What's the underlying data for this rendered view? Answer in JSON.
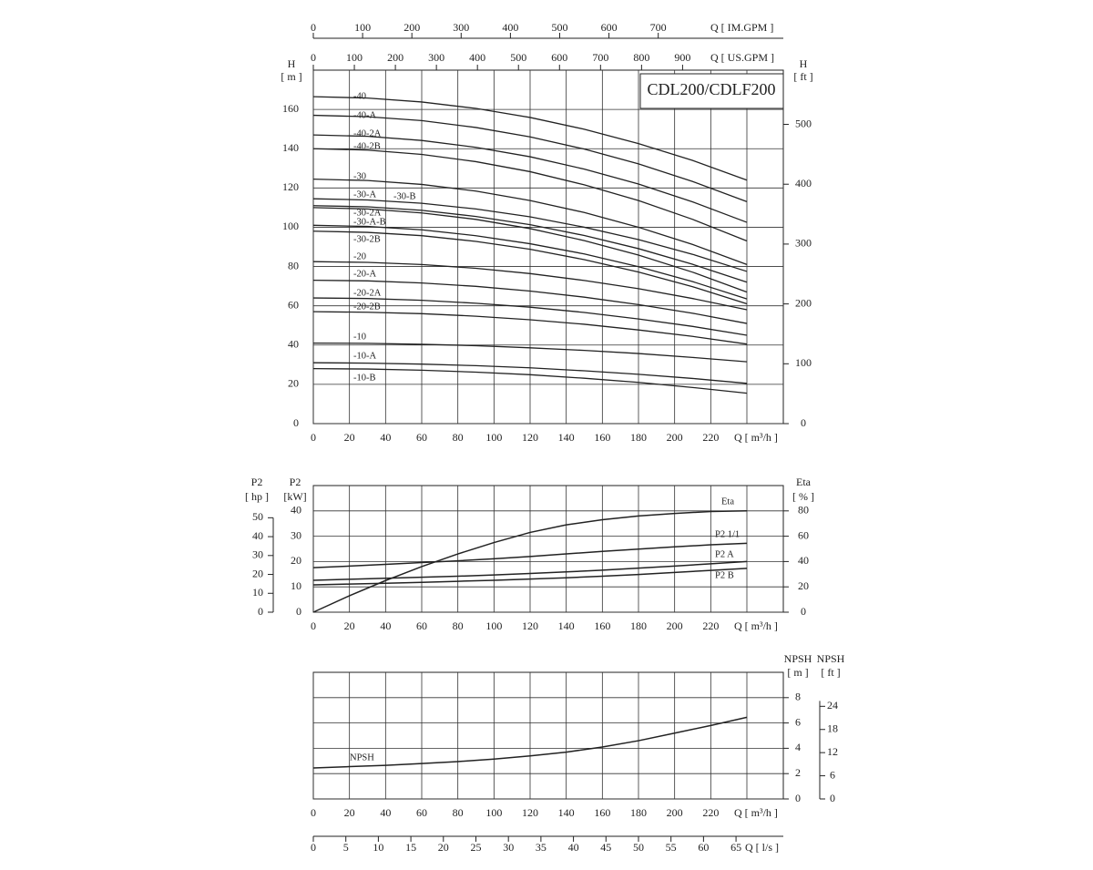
{
  "chart_data": [
    {
      "type": "line",
      "title": "CDL200/CDLF200",
      "grid": true,
      "x_label": "Q [ m³/h ]",
      "xlim": [
        0,
        240
      ],
      "xticks": [
        0,
        20,
        40,
        60,
        80,
        100,
        120,
        140,
        160,
        180,
        200,
        220
      ],
      "y_label": "H",
      "y_unit": "[ m ]",
      "ylim": [
        0,
        180
      ],
      "yticks": [
        0,
        20,
        40,
        60,
        80,
        100,
        120,
        140,
        160
      ],
      "y2_label": "H",
      "y2_unit": "[ ft ]",
      "y2lim": [
        0,
        590.6
      ],
      "y2ticks": [
        0,
        100,
        200,
        300,
        400,
        500
      ],
      "top_axes": [
        {
          "label": "Q [ US.GPM ]",
          "lim": [
            0,
            1056.7
          ],
          "ticks": [
            0,
            100,
            200,
            300,
            400,
            500,
            600,
            700,
            800,
            900
          ]
        },
        {
          "label": "Q [ IM.GPM ]",
          "lim": [
            0,
            879.9
          ],
          "ticks": [
            0,
            100,
            200,
            300,
            400,
            500,
            600,
            700
          ]
        }
      ],
      "x": [
        0,
        30,
        60,
        90,
        120,
        150,
        180,
        210,
        240
      ],
      "series": [
        {
          "name": "-40",
          "color": "#222222",
          "values": [
            166.5,
            165.8,
            163.8,
            160.5,
            155.9,
            149.9,
            142.6,
            134.0,
            124.0
          ]
        },
        {
          "name": "-40-A",
          "color": "#222222",
          "values": [
            157,
            156.3,
            154.3,
            150.8,
            146,
            139.8,
            132.3,
            123.3,
            113
          ]
        },
        {
          "name": "-40-2A",
          "color": "#222222",
          "values": [
            147,
            146.3,
            144.2,
            140.7,
            135.9,
            129.6,
            122,
            112.9,
            102.5
          ]
        },
        {
          "name": "-40-2B",
          "color": "#222222",
          "values": [
            140,
            139.3,
            137.1,
            133.4,
            128.3,
            121.6,
            113.6,
            104,
            93
          ]
        },
        {
          "name": "-30",
          "color": "#222222",
          "values": [
            124.5,
            123.8,
            121.8,
            118.4,
            113.6,
            107.5,
            100,
            91.2,
            81
          ]
        },
        {
          "name": "-30-A",
          "color": "#222222",
          "values": [
            114.5,
            113.9,
            112.2,
            109.3,
            105.3,
            100,
            93.7,
            86.2,
            77.5
          ]
        },
        {
          "name": "-30-B",
          "color": "#222222",
          "values": [
            111,
            110.4,
            108.6,
            105.5,
            101.3,
            95.8,
            89.1,
            81.1,
            72
          ]
        },
        {
          "name": "-30-2A",
          "color": "#222222",
          "values": [
            110,
            109.3,
            107.3,
            104,
            99.3,
            93.2,
            85.8,
            77.1,
            67
          ]
        },
        {
          "name": "-30-A-B",
          "color": "#222222",
          "values": [
            101,
            100.4,
            98.7,
            95.7,
            91.6,
            86.4,
            79.9,
            72.3,
            63.5
          ]
        },
        {
          "name": "-30-2B",
          "color": "#222222",
          "values": [
            98,
            97.4,
            95.7,
            92.8,
            88.8,
            83.5,
            77.2,
            69.7,
            61
          ]
        },
        {
          "name": "-20",
          "color": "#222222",
          "values": [
            82.5,
            82.1,
            81,
            79.1,
            76.4,
            72.9,
            68.7,
            63.7,
            58
          ]
        },
        {
          "name": "-20-A",
          "color": "#222222",
          "values": [
            73,
            72.7,
            71.6,
            69.9,
            67.5,
            64.4,
            60.6,
            56.2,
            51
          ]
        },
        {
          "name": "-20-2A",
          "color": "#222222",
          "values": [
            64,
            63.7,
            62.8,
            61.3,
            59.3,
            56.6,
            53.3,
            49.5,
            45
          ]
        },
        {
          "name": "-20-2B",
          "color": "#222222",
          "values": [
            57,
            56.7,
            56,
            54.7,
            52.9,
            50.6,
            47.7,
            44.4,
            40.5
          ]
        },
        {
          "name": "-10",
          "color": "#222222",
          "values": [
            41,
            40.9,
            40.4,
            39.7,
            38.6,
            37.3,
            35.7,
            33.7,
            31.5
          ]
        },
        {
          "name": "-10-A",
          "color": "#222222",
          "values": [
            31,
            30.8,
            30.3,
            29.5,
            28.4,
            26.9,
            25.1,
            23,
            20.5
          ]
        },
        {
          "name": "-10-B",
          "color": "#222222",
          "values": [
            28,
            27.8,
            27.2,
            26.2,
            24.9,
            23.1,
            21,
            18.4,
            15.5
          ]
        }
      ]
    },
    {
      "type": "line",
      "grid": true,
      "x_label": "Q [ m³/h ]",
      "xlim": [
        0,
        240
      ],
      "xticks": [
        0,
        20,
        40,
        60,
        80,
        100,
        120,
        140,
        160,
        180,
        200,
        220
      ],
      "y_label": "P2",
      "y_unit": "[kW]",
      "ylim": [
        0,
        50
      ],
      "yticks": [
        0,
        10,
        20,
        30,
        40
      ],
      "y3_label": "P2",
      "y3_unit": "[ hp ]",
      "y3lim": [
        0,
        67.05
      ],
      "y3ticks": [
        0,
        10,
        20,
        30,
        40,
        50
      ],
      "y2_label": "Eta",
      "y2_unit": "[ % ]",
      "y2lim": [
        0,
        100
      ],
      "y2ticks": [
        0,
        20,
        40,
        60,
        80
      ],
      "x": [
        0,
        20,
        40,
        60,
        80,
        100,
        120,
        140,
        160,
        180,
        200,
        220,
        240
      ],
      "series": [
        {
          "name": "Eta",
          "color": "#222222",
          "axis": "y2",
          "values": [
            0,
            13,
            25,
            36,
            46,
            55,
            63,
            69,
            73,
            76,
            78,
            79.5,
            80
          ]
        },
        {
          "name": "P2 1/1",
          "color": "#222222",
          "values": [
            17.6,
            18.2,
            18.9,
            19.6,
            20.3,
            21.1,
            22,
            23,
            24,
            24.9,
            25.8,
            26.6,
            27.2
          ]
        },
        {
          "name": "P2 A",
          "color": "#222222",
          "values": [
            12.6,
            13,
            13.4,
            13.8,
            14.2,
            14.7,
            15.3,
            15.9,
            16.6,
            17.4,
            18.2,
            19.1,
            20
          ]
        },
        {
          "name": "P2 B",
          "color": "#222222",
          "values": [
            10.8,
            11.1,
            11.4,
            11.8,
            12.2,
            12.6,
            13.1,
            13.6,
            14.2,
            14.9,
            15.7,
            16.5,
            17.3
          ]
        }
      ]
    },
    {
      "type": "line",
      "grid": true,
      "x_label": "Q [ m³/h ]",
      "xlim": [
        0,
        240
      ],
      "xticks": [
        0,
        20,
        40,
        60,
        80,
        100,
        120,
        140,
        160,
        180,
        200,
        220
      ],
      "y_label": "NPSH",
      "y_unit": "[ m ]",
      "ylim": [
        0,
        10
      ],
      "yticks": [
        0,
        2,
        4,
        6,
        8
      ],
      "y2_label": "NPSH",
      "y2_unit": "[ ft ]",
      "y2lim": [
        0,
        32.81
      ],
      "y2ticks": [
        0,
        6,
        12,
        18,
        24
      ],
      "bottom_axis": {
        "label": "Q [ l/s ]",
        "lim": [
          0,
          66.67
        ],
        "ticks": [
          0,
          5,
          10,
          15,
          20,
          25,
          30,
          35,
          40,
          45,
          50,
          55,
          60,
          65
        ]
      },
      "x": [
        0,
        20,
        40,
        60,
        80,
        100,
        120,
        140,
        160,
        180,
        200,
        220,
        240
      ],
      "series": [
        {
          "name": "NPSH",
          "color": "#222222",
          "values": [
            2.45,
            2.55,
            2.65,
            2.8,
            2.95,
            3.15,
            3.4,
            3.7,
            4.1,
            4.6,
            5.2,
            5.8,
            6.45
          ]
        }
      ]
    }
  ]
}
